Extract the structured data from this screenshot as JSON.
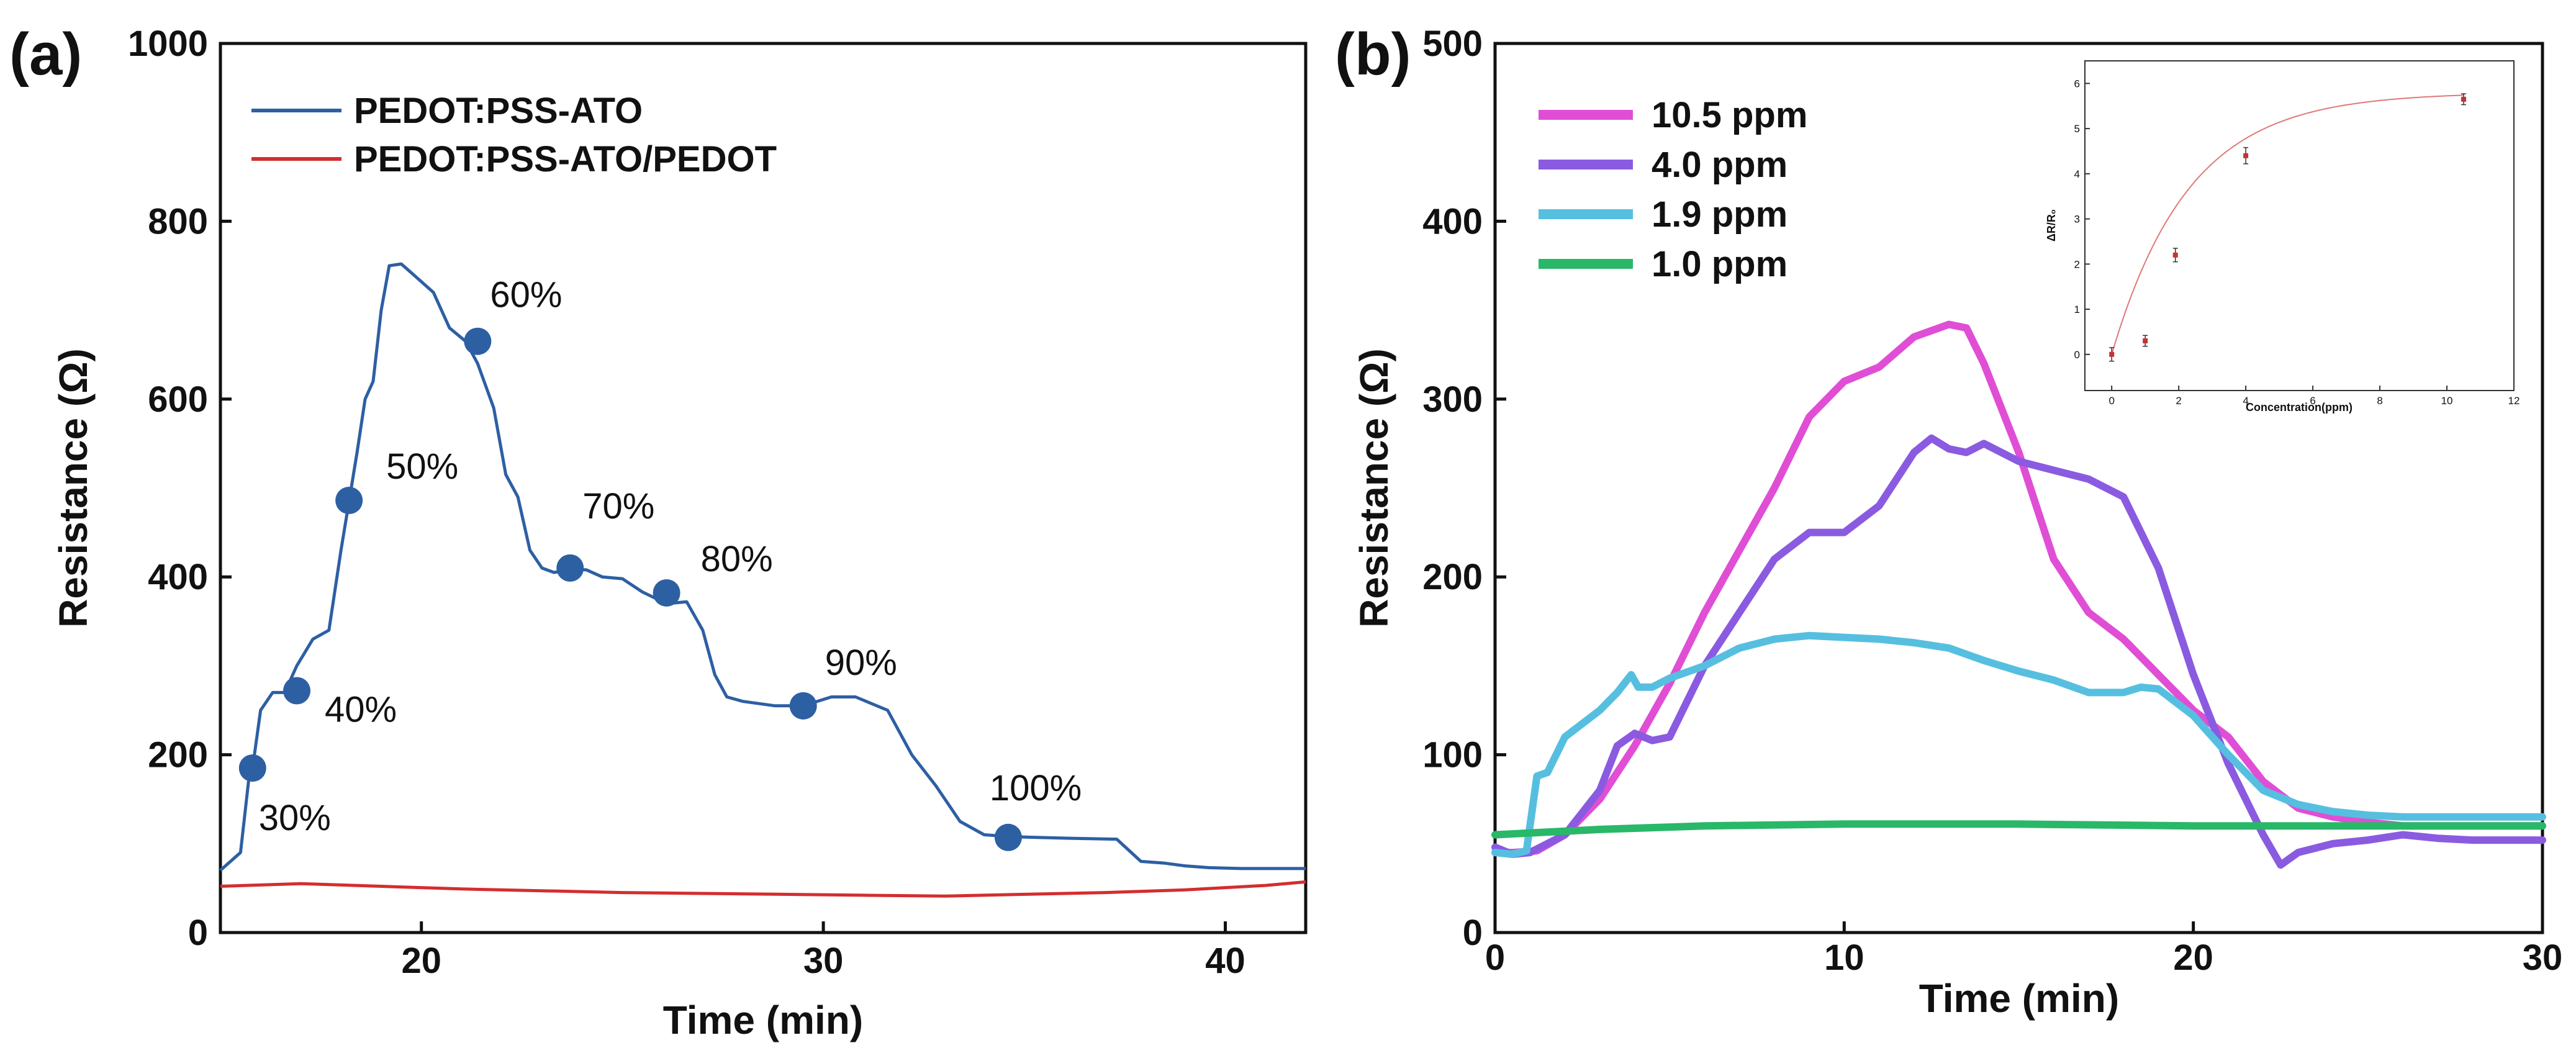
{
  "chart_data": [
    {
      "panel_label": "(a)",
      "type": "line",
      "xlabel": "Time (min)",
      "ylabel": "Resistance (Ω)",
      "xlim": [
        15,
        42
      ],
      "ylim": [
        0,
        1000
      ],
      "xticks": [
        "20",
        "30",
        "40"
      ],
      "yticks": [
        "0",
        "200",
        "400",
        "600",
        "800",
        "1000"
      ],
      "legend_position": "top-left",
      "series": [
        {
          "name": "PEDOT:PSS-ATO",
          "color": "#2d5fa3",
          "x": [
            15.0,
            15.5,
            15.7,
            15.8,
            16.0,
            16.3,
            16.6,
            16.9,
            17.3,
            17.7,
            18.0,
            18.2,
            18.4,
            18.6,
            18.8,
            19.0,
            19.2,
            19.5,
            19.8,
            20.3,
            20.7,
            21.1,
            21.4,
            21.8,
            22.1,
            22.4,
            22.7,
            23.0,
            23.3,
            23.7,
            24.1,
            24.5,
            25.0,
            25.5,
            26.1,
            26.6,
            27.0,
            27.3,
            27.6,
            28.0,
            28.8,
            29.5,
            30.2,
            30.8,
            31.6,
            32.2,
            32.8,
            33.4,
            34.0,
            34.6,
            35.3,
            36.2,
            37.3,
            37.9,
            38.5,
            39.0,
            39.6,
            40.4,
            41.5,
            42.0
          ],
          "y": [
            70,
            90,
            170,
            185,
            250,
            270,
            270,
            300,
            330,
            340,
            430,
            485,
            540,
            600,
            620,
            700,
            750,
            752,
            740,
            720,
            680,
            665,
            640,
            590,
            515,
            490,
            430,
            410,
            405,
            408,
            408,
            400,
            398,
            383,
            370,
            372,
            340,
            290,
            265,
            260,
            255,
            255,
            265,
            265,
            250,
            200,
            165,
            125,
            110,
            108,
            107,
            106,
            105,
            80,
            78,
            75,
            73,
            72,
            72,
            72
          ]
        },
        {
          "name": "PEDOT:PSS-ATO/PEDOT",
          "color": "#d42e2e",
          "x": [
            15,
            17,
            19,
            21,
            23,
            25,
            27,
            29,
            31,
            33,
            35,
            37,
            39,
            41,
            42
          ],
          "y": [
            52,
            55,
            52,
            49,
            47,
            45,
            44,
            43,
            42,
            41,
            43,
            45,
            48,
            53,
            57
          ]
        }
      ],
      "markers": {
        "color": "#2d5fa3",
        "points": [
          {
            "x": 15.8,
            "y": 185,
            "label": "30%"
          },
          {
            "x": 16.9,
            "y": 272,
            "label": "40%"
          },
          {
            "x": 18.2,
            "y": 486,
            "label": "50%"
          },
          {
            "x": 21.4,
            "y": 665,
            "label": "60%"
          },
          {
            "x": 23.7,
            "y": 410,
            "label": "70%"
          },
          {
            "x": 26.1,
            "y": 382,
            "label": "80%"
          },
          {
            "x": 29.5,
            "y": 255,
            "label": "90%"
          },
          {
            "x": 34.6,
            "y": 107,
            "label": "100%"
          }
        ]
      }
    },
    {
      "panel_label": "(b)",
      "type": "line",
      "xlabel": "Time (min)",
      "ylabel": "Resistance (Ω)",
      "xlim": [
        0,
        30
      ],
      "ylim": [
        0,
        500
      ],
      "xticks": [
        "0",
        "10",
        "20",
        "30"
      ],
      "yticks": [
        "0",
        "100",
        "200",
        "300",
        "400",
        "500"
      ],
      "legend_position": "top-left",
      "series": [
        {
          "name": "10.5 ppm",
          "color": "#e04ed5",
          "x": [
            0,
            0.5,
            1.2,
            2,
            3,
            4,
            5,
            6,
            7,
            8,
            9,
            10,
            11,
            12,
            13,
            13.5,
            14,
            15,
            16,
            17,
            18,
            19,
            20,
            21,
            22,
            23,
            24,
            25,
            26,
            27,
            28,
            29,
            30
          ],
          "y": [
            45,
            45,
            46,
            55,
            75,
            105,
            140,
            180,
            215,
            250,
            290,
            310,
            318,
            335,
            342,
            340,
            320,
            270,
            210,
            180,
            165,
            145,
            125,
            110,
            85,
            70,
            65,
            62,
            60,
            60,
            60,
            60,
            60
          ]
        },
        {
          "name": "4.0 ppm",
          "color": "#8a5be0",
          "x": [
            0,
            0.5,
            1,
            2,
            3,
            3.5,
            4,
            4.5,
            5,
            6,
            7,
            8,
            9,
            10,
            11,
            12,
            12.5,
            13,
            13.5,
            14,
            15,
            16,
            17,
            18,
            19,
            20,
            21,
            22,
            22.5,
            23,
            24,
            25,
            26,
            27,
            28,
            29,
            30
          ],
          "y": [
            48,
            44,
            45,
            55,
            80,
            105,
            112,
            108,
            110,
            150,
            180,
            210,
            225,
            225,
            240,
            270,
            278,
            272,
            270,
            275,
            265,
            260,
            255,
            245,
            205,
            145,
            95,
            55,
            38,
            45,
            50,
            52,
            55,
            53,
            52,
            52,
            52
          ]
        },
        {
          "name": "1.9 ppm",
          "color": "#56bfe0",
          "x": [
            0,
            0.5,
            0.9,
            1,
            1.2,
            1.5,
            2,
            3,
            3.5,
            3.9,
            4.1,
            4.5,
            5,
            6,
            7,
            8,
            9,
            10,
            11,
            12,
            13,
            14,
            15,
            16,
            17,
            18,
            18.5,
            19,
            20,
            21,
            22,
            23,
            24,
            25,
            26,
            27,
            28,
            29,
            30
          ],
          "y": [
            45,
            44,
            46,
            60,
            88,
            90,
            110,
            125,
            135,
            145,
            138,
            138,
            143,
            150,
            160,
            165,
            167,
            166,
            165,
            163,
            160,
            153,
            147,
            142,
            135,
            135,
            138,
            137,
            122,
            100,
            80,
            72,
            68,
            66,
            65,
            65,
            65,
            65,
            65
          ]
        },
        {
          "name": "1.0 ppm",
          "color": "#28b868",
          "x": [
            0,
            1,
            3,
            6,
            10,
            15,
            20,
            25,
            28,
            30
          ],
          "y": [
            55,
            56,
            58,
            60,
            61,
            61,
            60,
            60,
            60,
            60
          ]
        }
      ],
      "inset": {
        "type": "scatter+fit",
        "xlabel": "Concentration(ppm)",
        "ylabel": "ΔR/R₀",
        "xlim": [
          -0.8,
          12
        ],
        "ylim": [
          -0.8,
          6.5
        ],
        "xticks": [
          "0",
          "2",
          "4",
          "6",
          "8",
          "10",
          "12"
        ],
        "yticks": [
          "0",
          "1",
          "2",
          "3",
          "4",
          "5",
          "6"
        ],
        "points": [
          {
            "x": 0,
            "y": 0.0,
            "err": 0.15
          },
          {
            "x": 1.0,
            "y": 0.3,
            "err": 0.12
          },
          {
            "x": 1.9,
            "y": 2.2,
            "err": 0.15
          },
          {
            "x": 4.0,
            "y": 4.4,
            "err": 0.18
          },
          {
            "x": 10.5,
            "y": 5.65,
            "err": 0.12
          }
        ],
        "fit": {
          "color": "#e07878",
          "form": "A*(1-exp(-x/t))",
          "A": 5.8,
          "t": 2.3
        },
        "point_color": "#c83232"
      }
    }
  ]
}
